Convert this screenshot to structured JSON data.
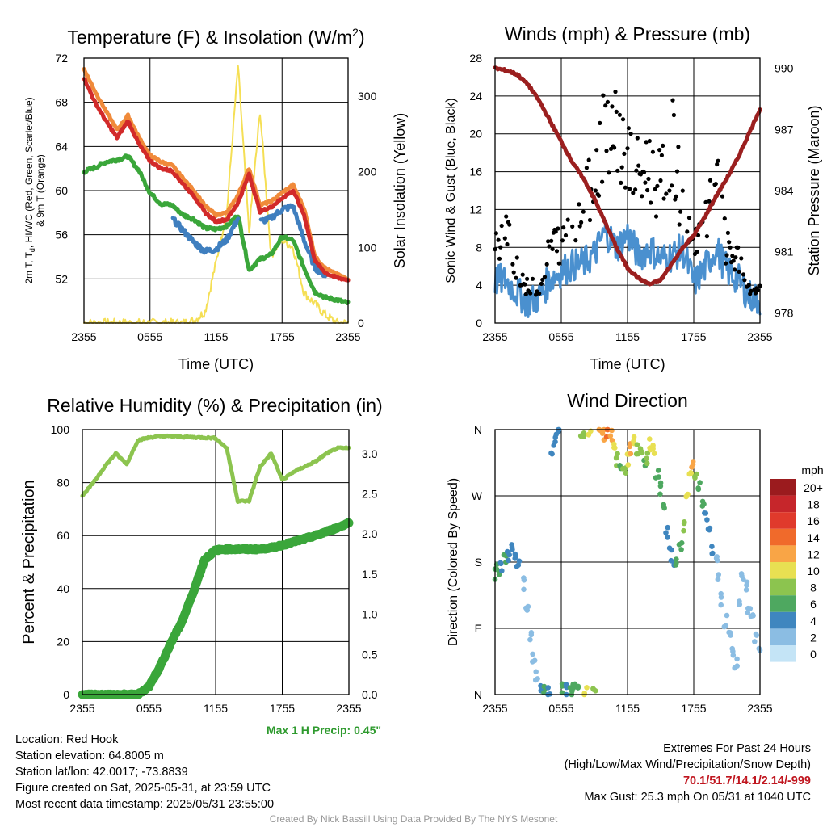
{
  "panels": {
    "temp": {
      "title": "Temperature (F) & Insolation (W/m",
      "title_sup": "2",
      "title_end": ")",
      "xlabel": "Time (UTC)",
      "ylabel_left_line1_a": "2m T, T",
      "ylabel_left_line1_sub": "d",
      "ylabel_left_line1_b": ", HI/WC (Red, Green, Scarlet/Blue)",
      "ylabel_left_line2": "& 9m T (Orange)",
      "ylabel_right": "Solar Insolation (Yellow)",
      "xticks": [
        "2355",
        "0555",
        "1155",
        "1755",
        "2355"
      ],
      "yticks_left": [
        "52",
        "56",
        "60",
        "64",
        "68",
        "72"
      ],
      "yticks_right": [
        "0",
        "100",
        "200",
        "300"
      ]
    },
    "wind": {
      "title": "Winds (mph) & Pressure (mb)",
      "xlabel": "Time (UTC)",
      "ylabel_left": "Sonic Wind & Gust (Blue, Black)",
      "ylabel_right": "Station Pressure (Maroon)",
      "xticks": [
        "2355",
        "0555",
        "1155",
        "1755",
        "2355"
      ],
      "yticks_left": [
        "0",
        "4",
        "8",
        "12",
        "16",
        "20",
        "24",
        "28"
      ],
      "yticks_right": [
        "978",
        "981",
        "984",
        "987",
        "990"
      ]
    },
    "rh": {
      "title": "Relative Humidity (%) & Precipitation (in)",
      "ylabel_left": "Percent & Precipitation",
      "xticks": [
        "2355",
        "0555",
        "1155",
        "1755",
        "2355"
      ],
      "yticks_left": [
        "0",
        "20",
        "40",
        "60",
        "80",
        "100"
      ],
      "yticks_right": [
        "0.0",
        "0.5",
        "1.0",
        "1.5",
        "2.0",
        "2.5",
        "3.0"
      ],
      "max_precip": "Max 1 H Precip: 0.45\""
    },
    "wdir": {
      "title": "Wind Direction",
      "ylabel_left": "Direction (Colored By Speed)",
      "xticks": [
        "2355",
        "0555",
        "1155",
        "1755",
        "2355"
      ],
      "yticks_left": [
        "N",
        "E",
        "S",
        "W",
        "N"
      ],
      "legend_title": "mph",
      "legend_labels": [
        "20+",
        "18",
        "16",
        "14",
        "12",
        "10",
        "8",
        "6",
        "4",
        "2",
        "0"
      ],
      "legend_colors": [
        "#9b1b1e",
        "#c6262b",
        "#e03a2c",
        "#f06a2b",
        "#f9a546",
        "#e8e052",
        "#8cc44f",
        "#4ea860",
        "#3f86bf",
        "#8bbde3",
        "#c4e4f6"
      ]
    }
  },
  "station": {
    "location": "Location: Red Hook",
    "elevation": "Station elevation: 64.8005 m",
    "latlon": "Station lat/lon: 42.0017; -73.8839",
    "created": "Figure created on Sat, 2025-05-31, at 23:59 UTC",
    "recent": "Most recent data timestamp: 2025/05/31 23:55:00"
  },
  "extremes": {
    "heading": "Extremes For Past 24 Hours",
    "subheading": "(High/Low/Max Wind/Precipitation/Snow Depth)",
    "values": "70.1/51.7/14.1/2.14/-999",
    "max_gust": "Max Gust: 25.3 mph On 05/31 at 1040 UTC"
  },
  "credit": "Created By Nick Bassill Using Data Provided By The NYS Mesonet",
  "chart_data": [
    {
      "type": "line",
      "title": "Temperature (F) & Insolation (W/m2)",
      "xlabel": "Time (UTC)",
      "ylabel": "2m T, Td, HI/WC (Red, Green, Scarlet/Blue) & 9m T (Orange)",
      "ylabel_right": "Solar Insolation (Yellow)",
      "x_hours": [
        0,
        1,
        2,
        3,
        4,
        5,
        6,
        7,
        8,
        9,
        10,
        11,
        12,
        13,
        14,
        15,
        16,
        17,
        18,
        19,
        20,
        21,
        22,
        23,
        24
      ],
      "ylim": [
        48,
        72
      ],
      "ylim_right": [
        0,
        350
      ],
      "series": [
        {
          "name": "2m T",
          "color": "#d22a2a",
          "axis": "left",
          "values": [
            70.2,
            68,
            66.3,
            64.8,
            66.3,
            64.2,
            62.7,
            62,
            61.8,
            60.6,
            59.5,
            58,
            57.2,
            57.4,
            58.9,
            61.5,
            58.1,
            58.5,
            59.3,
            60,
            57.8,
            53.6,
            52.5,
            52.1,
            51.9
          ]
        },
        {
          "name": "9m T",
          "color": "#f08a3a",
          "axis": "left",
          "values": [
            71,
            69,
            67.2,
            65.5,
            66.8,
            64.8,
            63.2,
            62.6,
            62.3,
            61.1,
            60,
            58.6,
            57.8,
            58,
            59.6,
            62,
            58.7,
            59,
            59.8,
            60.5,
            58.4,
            54,
            52.9,
            52.4,
            52
          ]
        },
        {
          "name": "Td",
          "color": "#3aa63a",
          "axis": "left",
          "values": [
            61.7,
            62.1,
            62.6,
            62.8,
            63.1,
            61.8,
            59.8,
            58.8,
            58.7,
            57.8,
            57.4,
            56.6,
            56.5,
            56.8,
            57.8,
            52.8,
            53.8,
            54.2,
            55.8,
            55.5,
            53,
            50.8,
            50.3,
            50.1,
            49.8
          ]
        },
        {
          "name": "WC",
          "color": "#3f7fbf",
          "axis": "left",
          "values": [
            null,
            null,
            null,
            null,
            null,
            null,
            null,
            null,
            57.5,
            56.4,
            55.3,
            54.5,
            54.7,
            55.6,
            57.5,
            null,
            57.2,
            57.5,
            58.3,
            58.6,
            55.5,
            53,
            52.3,
            null,
            null
          ]
        },
        {
          "name": "Solar Insolation",
          "color": "#f5df55",
          "axis": "right",
          "values": [
            0,
            0,
            0,
            0,
            0,
            0,
            0,
            0,
            0,
            0,
            3,
            15,
            80,
            150,
            340,
            120,
            280,
            90,
            110,
            100,
            40,
            25,
            10,
            0,
            0
          ]
        }
      ]
    },
    {
      "type": "line",
      "title": "Winds (mph) & Pressure (mb)",
      "xlabel": "Time (UTC)",
      "ylabel": "Sonic Wind & Gust (Blue, Black)",
      "ylabel_right": "Station Pressure (Maroon)",
      "x_hours": [
        0,
        1,
        2,
        3,
        4,
        5,
        6,
        7,
        8,
        9,
        10,
        11,
        12,
        13,
        14,
        15,
        16,
        17,
        18,
        19,
        20,
        21,
        22,
        23,
        24
      ],
      "ylim": [
        0,
        28
      ],
      "ylim_right": [
        977.5,
        990.5
      ],
      "series": [
        {
          "name": "Sonic Wind",
          "color": "#4a90cf",
          "axis": "left",
          "values": [
            4.5,
            4.5,
            3.2,
            2.2,
            2.7,
            4.7,
            5.5,
            6.1,
            6.3,
            7.3,
            9.7,
            8,
            9.4,
            7.1,
            7.9,
            6.8,
            7.1,
            7.8,
            4.2,
            5.8,
            7.9,
            5.6,
            4.6,
            2.9,
            2.4
          ]
        },
        {
          "name": "Gust",
          "color": "#000000",
          "axis": "left",
          "values": [
            8.8,
            9.4,
            6.2,
            3.4,
            4.2,
            8.2,
            8.6,
            10.2,
            12.2,
            16.2,
            21.8,
            19.7,
            17.3,
            15.3,
            16.6,
            14.4,
            19.8,
            11.4,
            7.2,
            10.8,
            15.2,
            7.6,
            6.4,
            3.6,
            3.2
          ]
        },
        {
          "name": "Station Pressure",
          "color": "#9b1f1f",
          "axis": "right",
          "values": [
            990,
            989.9,
            989.7,
            989.2,
            988.4,
            987.4,
            986.4,
            985.4,
            984.6,
            983.6,
            982.4,
            981.2,
            980.2,
            979.7,
            979.4,
            979.6,
            980.4,
            981.2,
            981.8,
            982.7,
            983.7,
            984.6,
            985.6,
            986.8,
            988
          ]
        }
      ]
    },
    {
      "type": "line",
      "title": "Relative Humidity (%) & Precipitation (in)",
      "ylabel": "Percent & Precipitation",
      "x_hours": [
        0,
        1,
        2,
        3,
        4,
        5,
        6,
        7,
        8,
        9,
        10,
        11,
        12,
        13,
        14,
        15,
        16,
        17,
        18,
        19,
        20,
        21,
        22,
        23,
        24
      ],
      "ylim": [
        0,
        100
      ],
      "ylim_right": [
        0,
        3.3
      ],
      "series": [
        {
          "name": "Relative Humidity",
          "color": "#8cc44f",
          "axis": "left",
          "values": [
            75,
            80,
            86,
            91,
            87,
            96,
            97,
            97.5,
            97.5,
            97.3,
            97.1,
            97,
            96.8,
            93,
            73,
            73,
            86,
            91,
            81,
            84,
            86,
            88,
            91,
            93,
            93
          ]
        },
        {
          "name": "Precipitation",
          "color": "#3aa63a",
          "axis": "right",
          "values": [
            0,
            0,
            0,
            0,
            0,
            0,
            0.1,
            0.35,
            0.65,
            0.92,
            1.28,
            1.68,
            1.8,
            1.81,
            1.81,
            1.81,
            1.81,
            1.83,
            1.86,
            1.9,
            1.94,
            1.98,
            2.03,
            2.08,
            2.14
          ]
        }
      ]
    },
    {
      "type": "scatter",
      "title": "Wind Direction",
      "ylabel": "Direction (Colored By Speed)",
      "yticks": [
        "N",
        "E",
        "S",
        "W",
        "N"
      ],
      "ylim_deg": [
        0,
        360
      ],
      "legend_title": "mph",
      "points": [
        {
          "h": 0.1,
          "deg": 165,
          "spd": 5
        },
        {
          "h": 0.3,
          "deg": 170,
          "spd": 6
        },
        {
          "h": 0.6,
          "deg": 176,
          "spd": 4
        },
        {
          "h": 0.9,
          "deg": 185,
          "spd": 5
        },
        {
          "h": 1.2,
          "deg": 190,
          "spd": 4
        },
        {
          "h": 1.5,
          "deg": 196,
          "spd": 3
        },
        {
          "h": 1.8,
          "deg": 188,
          "spd": 3
        },
        {
          "h": 2.1,
          "deg": 180,
          "spd": 3
        },
        {
          "h": 2.5,
          "deg": 150,
          "spd": 1
        },
        {
          "h": 2.9,
          "deg": 120,
          "spd": 1
        },
        {
          "h": 3.2,
          "deg": 80,
          "spd": 1
        },
        {
          "h": 3.5,
          "deg": 50,
          "spd": 1
        },
        {
          "h": 3.8,
          "deg": 25,
          "spd": 2
        },
        {
          "h": 4.1,
          "deg": 12,
          "spd": 4
        },
        {
          "h": 4.5,
          "deg": 8,
          "spd": 5
        },
        {
          "h": 4.9,
          "deg": 3,
          "spd": 4
        },
        {
          "h": 5.2,
          "deg": 330,
          "spd": 4
        },
        {
          "h": 5.5,
          "deg": 350,
          "spd": 4
        },
        {
          "h": 5.8,
          "deg": 358,
          "spd": 4
        },
        {
          "h": 6.2,
          "deg": 10,
          "spd": 5
        },
        {
          "h": 6.5,
          "deg": 5,
          "spd": 4
        },
        {
          "h": 6.9,
          "deg": 2,
          "spd": 5
        },
        {
          "h": 7.2,
          "deg": 10,
          "spd": 6
        },
        {
          "h": 7.6,
          "deg": 5,
          "spd": 6
        },
        {
          "h": 7.9,
          "deg": 355,
          "spd": 8
        },
        {
          "h": 8.2,
          "deg": 5,
          "spd": 9
        },
        {
          "h": 8.6,
          "deg": 355,
          "spd": 10
        },
        {
          "h": 9.0,
          "deg": 3,
          "spd": 7
        },
        {
          "h": 9.4,
          "deg": 358,
          "spd": 11
        },
        {
          "h": 9.8,
          "deg": 355,
          "spd": 12
        },
        {
          "h": 10.2,
          "deg": 355,
          "spd": 14
        },
        {
          "h": 10.5,
          "deg": 350,
          "spd": 12
        },
        {
          "h": 10.8,
          "deg": 340,
          "spd": 9
        },
        {
          "h": 11.1,
          "deg": 320,
          "spd": 7
        },
        {
          "h": 11.4,
          "deg": 310,
          "spd": 6
        },
        {
          "h": 11.7,
          "deg": 300,
          "spd": 7
        },
        {
          "h": 12.0,
          "deg": 320,
          "spd": 9
        },
        {
          "h": 12.3,
          "deg": 335,
          "spd": 11
        },
        {
          "h": 12.6,
          "deg": 345,
          "spd": 10
        },
        {
          "h": 12.9,
          "deg": 335,
          "spd": 8
        },
        {
          "h": 13.2,
          "deg": 325,
          "spd": 7
        },
        {
          "h": 13.5,
          "deg": 310,
          "spd": 6
        },
        {
          "h": 13.8,
          "deg": 320,
          "spd": 8
        },
        {
          "h": 14.1,
          "deg": 340,
          "spd": 10
        },
        {
          "h": 14.4,
          "deg": 330,
          "spd": 9
        },
        {
          "h": 14.7,
          "deg": 300,
          "spd": 5
        },
        {
          "h": 15.0,
          "deg": 280,
          "spd": 5
        },
        {
          "h": 15.3,
          "deg": 250,
          "spd": 5
        },
        {
          "h": 15.6,
          "deg": 220,
          "spd": 4
        },
        {
          "h": 15.9,
          "deg": 190,
          "spd": 4
        },
        {
          "h": 16.2,
          "deg": 170,
          "spd": 4
        },
        {
          "h": 16.5,
          "deg": 185,
          "spd": 5
        },
        {
          "h": 16.8,
          "deg": 200,
          "spd": 6
        },
        {
          "h": 17.1,
          "deg": 230,
          "spd": 7
        },
        {
          "h": 17.4,
          "deg": 265,
          "spd": 9
        },
        {
          "h": 17.7,
          "deg": 300,
          "spd": 10
        },
        {
          "h": 17.9,
          "deg": 315,
          "spd": 12
        },
        {
          "h": 18.2,
          "deg": 300,
          "spd": 8
        },
        {
          "h": 18.5,
          "deg": 285,
          "spd": 6
        },
        {
          "h": 18.8,
          "deg": 265,
          "spd": 5
        },
        {
          "h": 19.1,
          "deg": 245,
          "spd": 4
        },
        {
          "h": 19.4,
          "deg": 220,
          "spd": 4
        },
        {
          "h": 19.7,
          "deg": 200,
          "spd": 3
        },
        {
          "h": 20.0,
          "deg": 180,
          "spd": 2
        },
        {
          "h": 20.3,
          "deg": 160,
          "spd": 2
        },
        {
          "h": 20.6,
          "deg": 130,
          "spd": 2
        },
        {
          "h": 20.9,
          "deg": 100,
          "spd": 2
        },
        {
          "h": 21.2,
          "deg": 80,
          "spd": 2
        },
        {
          "h": 21.5,
          "deg": 60,
          "spd": 1
        },
        {
          "h": 21.8,
          "deg": 40,
          "spd": 1
        },
        {
          "h": 22.1,
          "deg": 130,
          "spd": 1
        },
        {
          "h": 22.4,
          "deg": 160,
          "spd": 2
        },
        {
          "h": 22.7,
          "deg": 145,
          "spd": 2
        },
        {
          "h": 23.0,
          "deg": 120,
          "spd": 1
        },
        {
          "h": 23.3,
          "deg": 100,
          "spd": 1
        },
        {
          "h": 23.6,
          "deg": 75,
          "spd": 1
        },
        {
          "h": 23.9,
          "deg": 60,
          "spd": 1
        }
      ]
    }
  ]
}
